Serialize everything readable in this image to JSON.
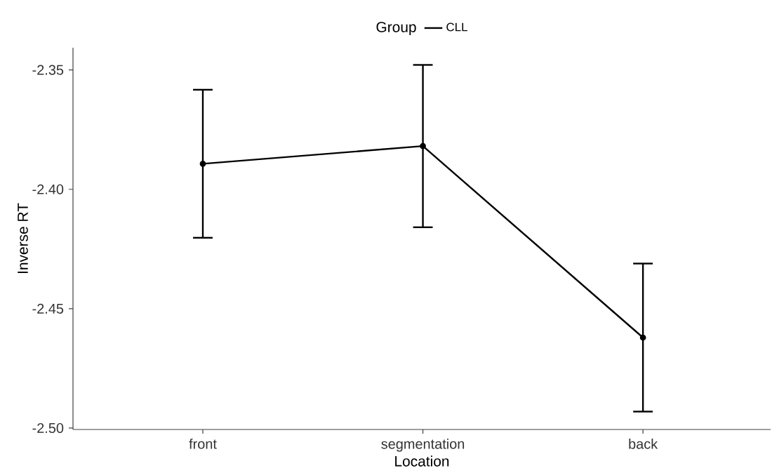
{
  "chart_data": {
    "type": "line",
    "xlabel": "Location",
    "ylabel": "Inverse RT",
    "legend_title": "Group",
    "legend": "top",
    "marker": "circle",
    "line_style": "solid",
    "grid": false,
    "categories": [
      "front",
      "segmentation",
      "back"
    ],
    "series": [
      {
        "name": "CLL",
        "color": "#000000",
        "values": [
          -2.3893,
          -2.3819,
          -2.4621
        ],
        "errors": [
          0.031,
          0.034,
          0.031
        ]
      }
    ],
    "ylim": [
      -2.5006,
      -2.3407
    ],
    "yticks": [
      -2.35,
      {
        "value": -2.4,
        "label": "-2.40"
      },
      -2.45,
      {
        "value": -2.5,
        "label": "-2.50"
      }
    ]
  }
}
